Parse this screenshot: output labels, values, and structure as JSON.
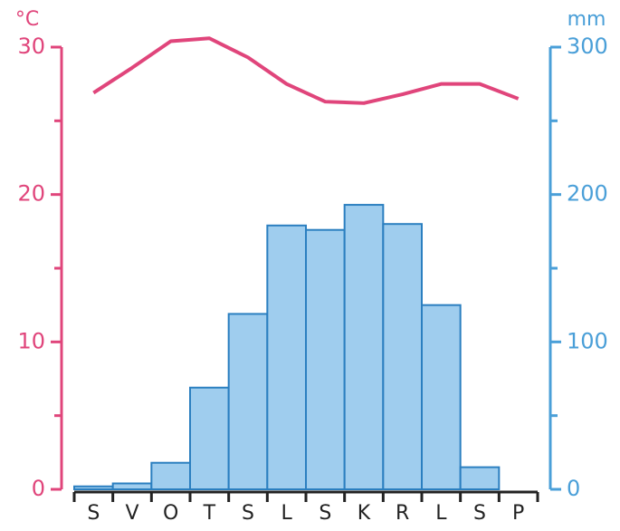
{
  "chart_data": {
    "type": "bar",
    "categories": [
      "S",
      "V",
      "O",
      "T",
      "S",
      "L",
      "S",
      "K",
      "R",
      "L",
      "S",
      "P"
    ],
    "series": [
      {
        "name": "°C",
        "type": "line",
        "axis": "y",
        "color": "#e0457b",
        "values": [
          26.9,
          28.6,
          30.4,
          30.6,
          29.3,
          27.5,
          26.3,
          26.2,
          26.8,
          27.5,
          27.5,
          26.5
        ]
      },
      {
        "name": "mm",
        "type": "bar",
        "axis": "y2",
        "color": "#9fcdee",
        "edge": "#2b7fc0",
        "values": [
          2,
          4,
          18,
          69,
          119,
          179,
          176,
          193,
          180,
          125,
          15,
          0
        ]
      }
    ],
    "ylim": [
      0,
      30
    ],
    "yticks": [
      0,
      10,
      20,
      30
    ],
    "yminorticks": [
      5,
      15,
      25
    ],
    "y2lim": [
      0,
      300
    ],
    "y2ticks": [
      0,
      100,
      200,
      300
    ],
    "y2minorticks": [
      50,
      150,
      250
    ]
  }
}
